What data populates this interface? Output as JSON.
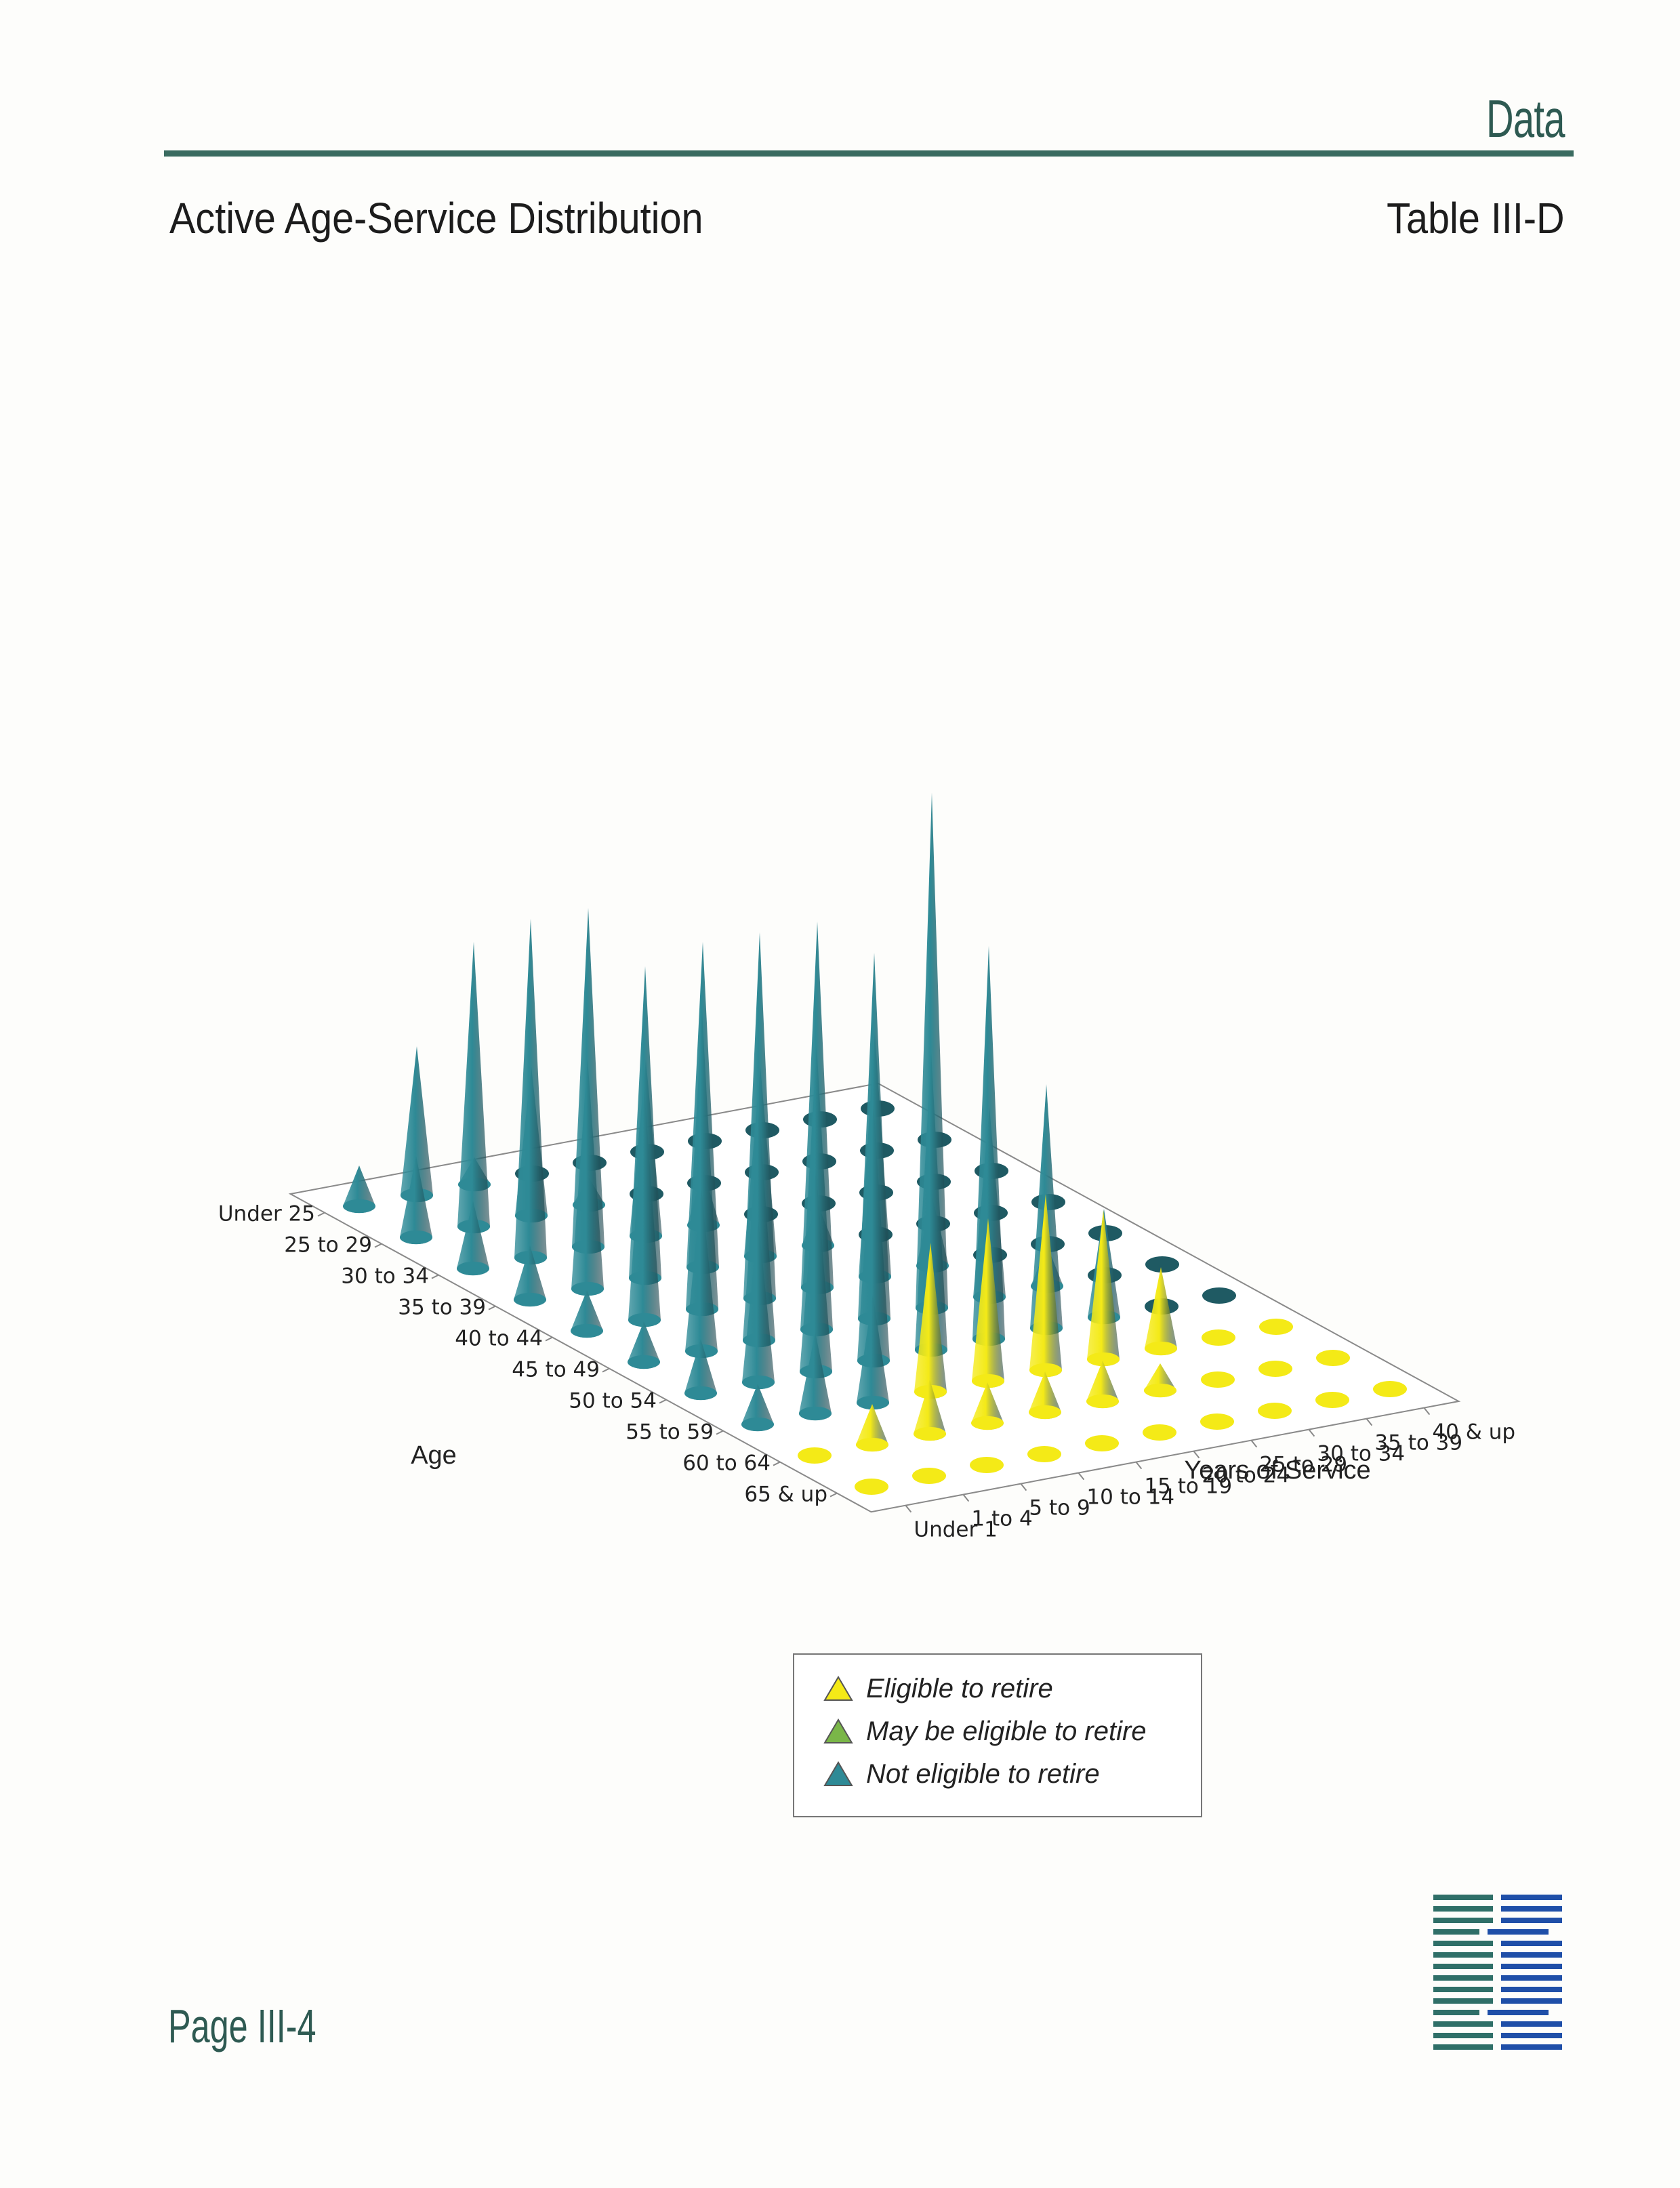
{
  "header": {
    "section": "Data",
    "title": "Active Age-Service Distribution",
    "table_id": "Table III-D"
  },
  "colors": {
    "eligible": "#f4ea17",
    "may_be_eligible": "#7ab648",
    "not_eligible": "#2e8a96",
    "not_eligible_light": "#8cc4cc",
    "rule": "#3a6b60"
  },
  "chart_data": {
    "type": "3d-cone",
    "title": "",
    "xlabel": "Age",
    "ylabel": "Years of Service",
    "age_categories": [
      "Under 25",
      "25 to 29",
      "30 to 34",
      "35 to 39",
      "40 to 44",
      "45 to 49",
      "50 to 54",
      "55 to 59",
      "60 to 64",
      "65 & up"
    ],
    "service_categories": [
      "Under 1",
      "1 to 4",
      "5 to 9",
      "10 to 14",
      "15 to 19",
      "20 to 24",
      "25 to 29",
      "30 to 34",
      "35 to 39",
      "40 & up"
    ],
    "values": [
      [
        3,
        11,
        2,
        0,
        0,
        0,
        0,
        0,
        0,
        0
      ],
      [
        6,
        21,
        11,
        2,
        0,
        0,
        0,
        0,
        0,
        0
      ],
      [
        5,
        25,
        25,
        13,
        4,
        0,
        0,
        0,
        0,
        0
      ],
      [
        4,
        17,
        23,
        24,
        14,
        3,
        0,
        0,
        0,
        0
      ],
      [
        3,
        17,
        22,
        27,
        27,
        18,
        5,
        0,
        0,
        0
      ],
      [
        3,
        12,
        17,
        21,
        27,
        38,
        14,
        3,
        0,
        0
      ],
      [
        4,
        12,
        15,
        19,
        22,
        29,
        18,
        8,
        0,
        0
      ],
      [
        3,
        6,
        8,
        11,
        12,
        13,
        11,
        6,
        0,
        0
      ],
      [
        0,
        3,
        4,
        3,
        3,
        3,
        2,
        0,
        0,
        0
      ],
      [
        0,
        0,
        0,
        0,
        0,
        0,
        0,
        0,
        0,
        0
      ]
    ],
    "status": [
      [
        "N",
        "N",
        "N",
        "N",
        "N",
        "N",
        "N",
        "N",
        "N",
        "N"
      ],
      [
        "N",
        "N",
        "N",
        "N",
        "N",
        "N",
        "N",
        "N",
        "N",
        "N"
      ],
      [
        "N",
        "N",
        "N",
        "N",
        "N",
        "N",
        "N",
        "N",
        "N",
        "N"
      ],
      [
        "N",
        "N",
        "N",
        "N",
        "N",
        "N",
        "N",
        "N",
        "N",
        "N"
      ],
      [
        "N",
        "N",
        "N",
        "N",
        "N",
        "N",
        "N",
        "N",
        "N",
        "N"
      ],
      [
        "N",
        "N",
        "N",
        "N",
        "N",
        "N",
        "N",
        "N",
        "N",
        "N"
      ],
      [
        "N",
        "N",
        "N",
        "N",
        "N",
        "N",
        "N",
        "N",
        "N",
        "N"
      ],
      [
        "N",
        "N",
        "N",
        "E",
        "E",
        "E",
        "E",
        "E",
        "E",
        "E"
      ],
      [
        "E",
        "E",
        "E",
        "E",
        "E",
        "E",
        "E",
        "E",
        "E",
        "E"
      ],
      [
        "E",
        "E",
        "E",
        "E",
        "E",
        "E",
        "E",
        "E",
        "E",
        "E"
      ]
    ],
    "legend": {
      "position": "bottom-center",
      "entries": [
        {
          "label": "Eligible to retire",
          "status": "E"
        },
        {
          "label": "May be eligible to retire",
          "status": "M"
        },
        {
          "label": "Not eligible to retire",
          "status": "N"
        }
      ]
    },
    "grid": false
  },
  "footer": {
    "page": "Page III-4",
    "logo": "segal-logo"
  }
}
